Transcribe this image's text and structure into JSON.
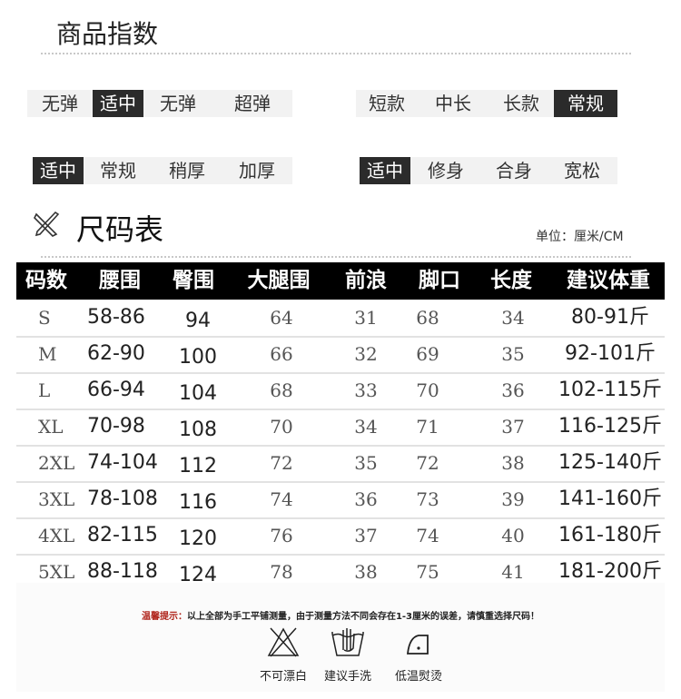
{
  "product_index": {
    "title": "商品指数",
    "groups": [
      {
        "options": [
          "无弹",
          "适中",
          "无弹",
          "超弹"
        ],
        "selected": 1
      },
      {
        "options": [
          "短款",
          "中长",
          "长款",
          "常规"
        ],
        "selected": 3
      },
      {
        "options": [
          "适中",
          "常规",
          "稍厚",
          "加厚"
        ],
        "selected": 0
      },
      {
        "options": [
          "适中",
          "修身",
          "合身",
          "宽松"
        ],
        "selected": 0
      }
    ]
  },
  "size_chart": {
    "title": "尺码表",
    "icon": "ruler-pencil-icon",
    "unit": "单位：厘米/CM",
    "headers": [
      "码数",
      "腰围",
      "臀围",
      "大腿围",
      "前浪",
      "脚口",
      "长度",
      "建议体重"
    ],
    "rows": [
      [
        "S",
        "58-86",
        "94",
        "64",
        "31",
        "68",
        "34",
        "80-91斤"
      ],
      [
        "M",
        "62-90",
        "100",
        "66",
        "32",
        "69",
        "35",
        "92-101斤"
      ],
      [
        "L",
        "66-94",
        "104",
        "68",
        "33",
        "70",
        "36",
        "102-115斤"
      ],
      [
        "XL",
        "70-98",
        "108",
        "70",
        "34",
        "71",
        "37",
        "116-125斤"
      ],
      [
        "2XL",
        "74-104",
        "112",
        "72",
        "35",
        "72",
        "38",
        "125-140斤"
      ],
      [
        "3XL",
        "78-108",
        "116",
        "74",
        "36",
        "73",
        "39",
        "141-160斤"
      ],
      [
        "4XL",
        "82-115",
        "120",
        "76",
        "37",
        "74",
        "40",
        "161-180斤"
      ],
      [
        "5XL",
        "88-118",
        "124",
        "78",
        "38",
        "75",
        "41",
        "181-200斤"
      ]
    ]
  },
  "notice": {
    "label": "温馨提示：",
    "text": "以上全部为手工平铺测量，由于测量方法不同会存在1-3厘米的误差，请慎重选择尺码！",
    "label_color": "#b0251c"
  },
  "care": [
    {
      "icon": "no-bleach-icon",
      "label": "不可漂白"
    },
    {
      "icon": "hand-wash-icon",
      "label": "建议手洗"
    },
    {
      "icon": "low-iron-icon",
      "label": "低温熨烫"
    }
  ]
}
